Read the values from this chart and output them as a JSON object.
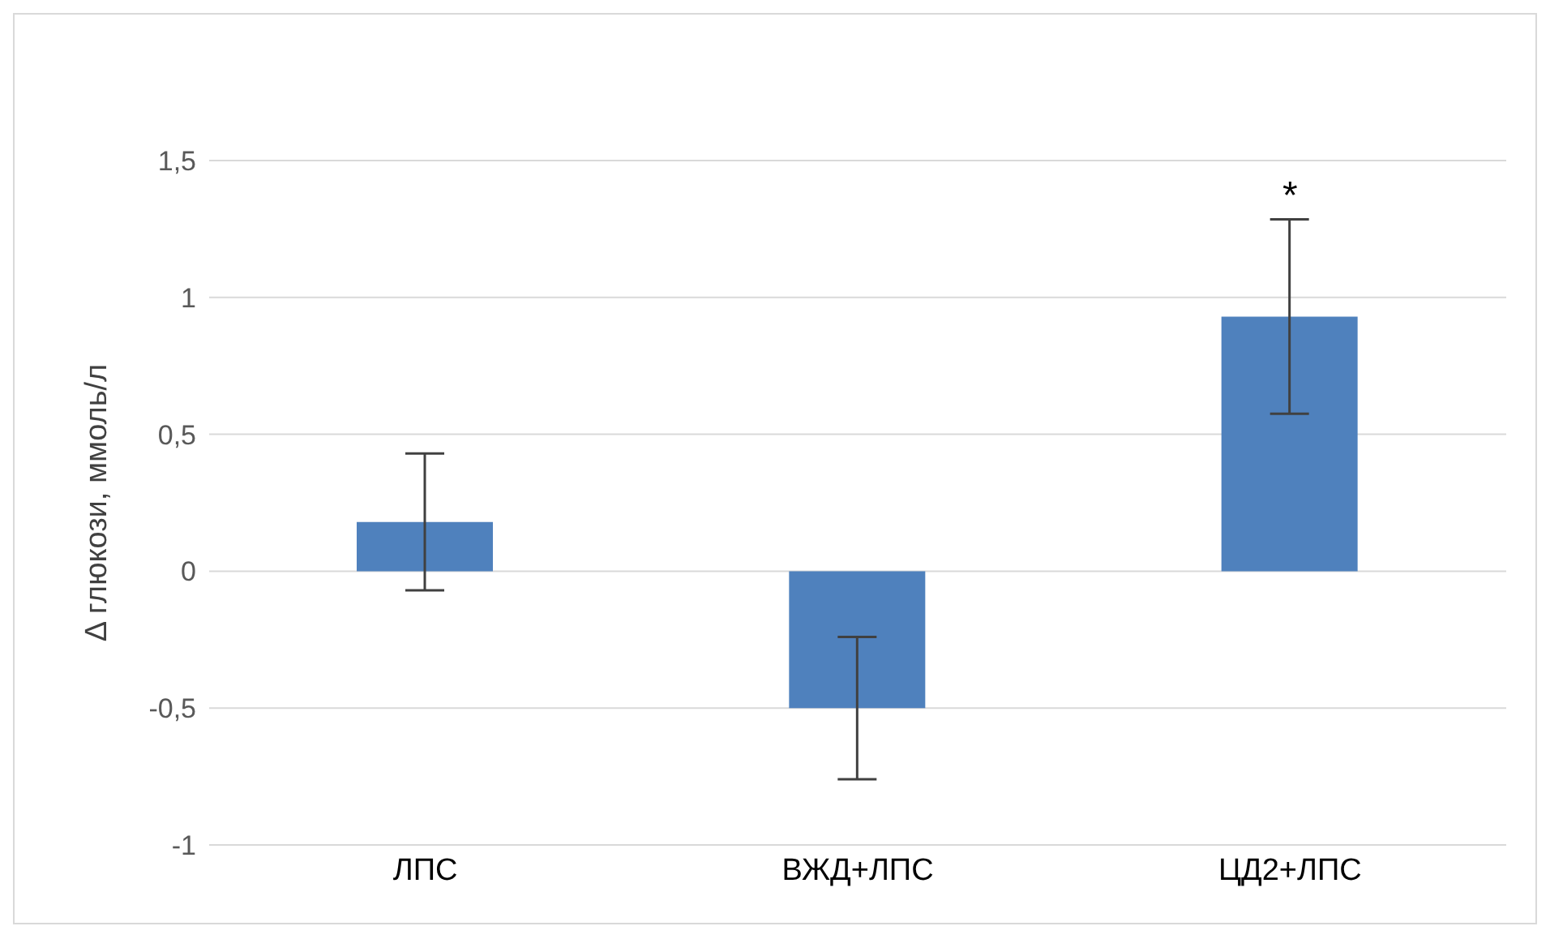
{
  "chart_data": {
    "type": "bar",
    "ylabel": "Δ глюкози, ммоль/л",
    "categories": [
      "ЛПС",
      "ВЖД+ЛПС",
      "ЦД2+ЛПС"
    ],
    "values": [
      0.18,
      -0.5,
      0.93
    ],
    "errors": [
      0.25,
      0.26,
      0.355
    ],
    "color": "#4f81bd",
    "ylim": [
      -1,
      1.5
    ],
    "yticks": [
      {
        "value": -1,
        "label": "-1"
      },
      {
        "value": -0.5,
        "label": "-0,5"
      },
      {
        "value": 0,
        "label": "0"
      },
      {
        "value": 0.5,
        "label": "0,5"
      },
      {
        "value": 1,
        "label": "1"
      },
      {
        "value": 1.5,
        "label": "1,5"
      }
    ],
    "grid": "y",
    "annotations": [
      "*"
    ]
  }
}
